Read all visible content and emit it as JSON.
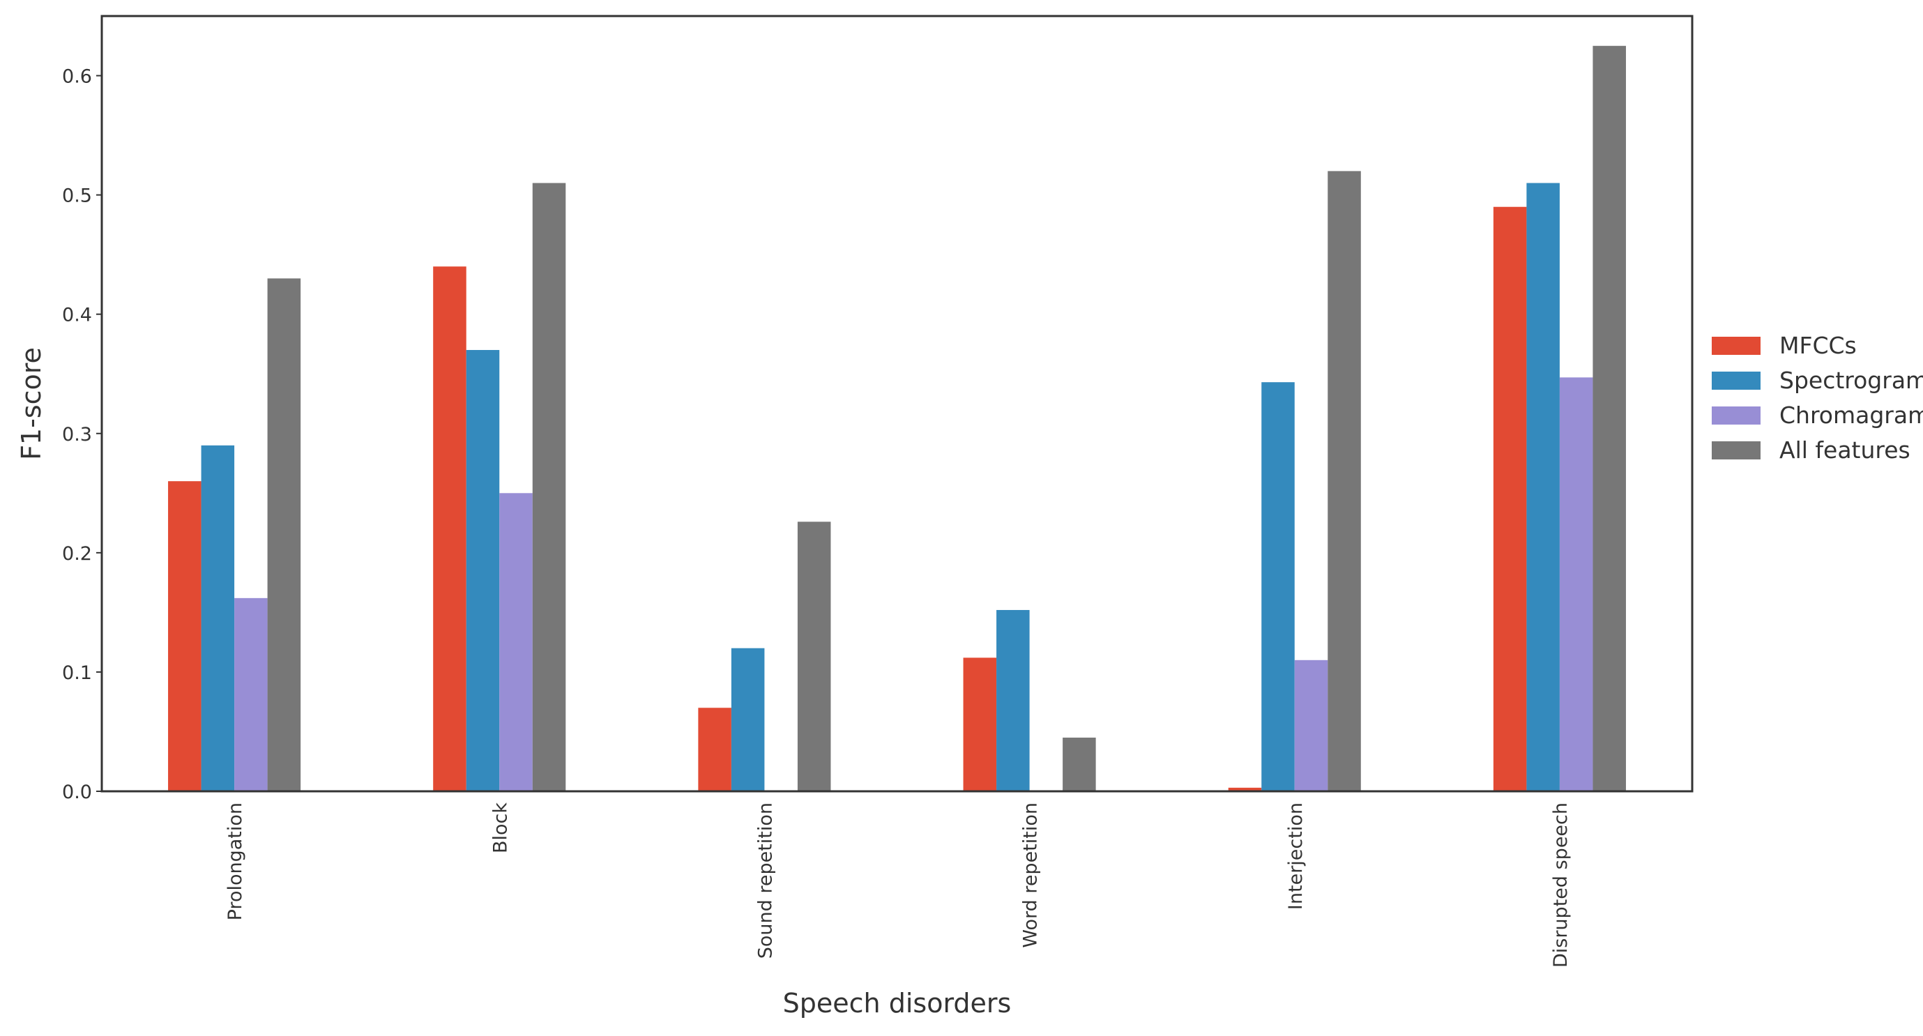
{
  "chart_data": {
    "type": "bar",
    "xlabel": "Speech disorders",
    "ylabel": "F1-score",
    "ylim": [
      0,
      0.65
    ],
    "yticks": [
      "0.0",
      "0.1",
      "0.2",
      "0.3",
      "0.4",
      "0.5",
      "0.6"
    ],
    "grid": false,
    "legend_position": "right",
    "categories": [
      "Prolongation",
      "Block",
      "Sound repetition",
      "Word repetition",
      "Interjection",
      "Disrupted speech"
    ],
    "series": [
      {
        "name": "MFCCs",
        "color": "#e24a33",
        "values": [
          0.26,
          0.44,
          0.07,
          0.112,
          0.003,
          0.49
        ]
      },
      {
        "name": "Spectrogram",
        "color": "#348abd",
        "values": [
          0.29,
          0.37,
          0.12,
          0.152,
          0.343,
          0.51
        ]
      },
      {
        "name": "Chromagram",
        "color": "#988ed5",
        "values": [
          0.162,
          0.25,
          0.0,
          0.0,
          0.11,
          0.347
        ]
      },
      {
        "name": "All features",
        "color": "#777777",
        "values": [
          0.43,
          0.51,
          0.226,
          0.045,
          0.52,
          0.625
        ]
      }
    ]
  }
}
